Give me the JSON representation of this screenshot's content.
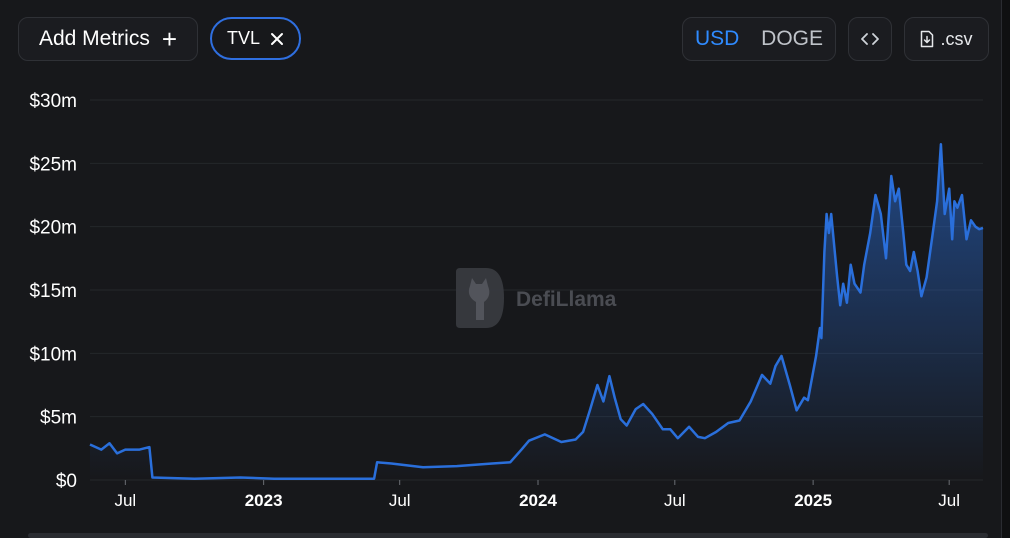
{
  "toolbar": {
    "add_metrics_label": "Add Metrics",
    "metric_chip_label": "TVL",
    "currency_options": [
      "USD",
      "DOGE"
    ],
    "selected_currency": "USD",
    "csv_label": ".csv"
  },
  "icons": {
    "add": "plus-icon",
    "remove": "close-icon",
    "embed": "code-icon",
    "download": "file-download-icon"
  },
  "watermark": "DefiLlama",
  "colors": {
    "line": "#2a6fdb",
    "active_currency": "#2f8bff",
    "background": "#17181b"
  },
  "chart_data": {
    "type": "area",
    "y_ticks": [
      "$0",
      "$5m",
      "$10m",
      "$15m",
      "$20m",
      "$25m",
      "$30m"
    ],
    "ylim": [
      0,
      30
    ],
    "x_ticks": [
      {
        "label": "Jul",
        "date": "2022-07-01",
        "bold": false
      },
      {
        "label": "2023",
        "date": "2023-01-01",
        "bold": true
      },
      {
        "label": "Jul",
        "date": "2023-07-01",
        "bold": false
      },
      {
        "label": "2024",
        "date": "2024-01-01",
        "bold": true
      },
      {
        "label": "Jul",
        "date": "2024-07-01",
        "bold": false
      },
      {
        "label": "2025",
        "date": "2025-01-01",
        "bold": true
      },
      {
        "label": "Jul",
        "date": "2025-07-01",
        "bold": false
      }
    ],
    "xlim": [
      "2022-05-15",
      "2025-08-15"
    ],
    "grid": "horizontal",
    "series": [
      {
        "x": [
          "2022-05-15",
          "2022-05-30",
          "2022-06-10",
          "2022-06-20",
          "2022-07-01",
          "2022-07-20",
          "2022-08-02",
          "2022-08-06",
          "2022-10-01",
          "2022-12-01",
          "2023-01-15",
          "2023-04-01",
          "2023-05-28",
          "2023-06-01",
          "2023-06-20",
          "2023-08-01",
          "2023-09-15",
          "2023-11-01",
          "2023-11-25",
          "2023-12-10",
          "2023-12-20",
          "2024-01-10",
          "2024-02-01",
          "2024-02-20",
          "2024-03-01",
          "2024-03-10",
          "2024-03-20",
          "2024-03-28",
          "2024-04-05",
          "2024-04-12",
          "2024-04-20",
          "2024-04-28",
          "2024-05-10",
          "2024-05-20",
          "2024-06-01",
          "2024-06-15",
          "2024-06-25",
          "2024-07-05",
          "2024-07-20",
          "2024-08-01",
          "2024-08-10",
          "2024-08-25",
          "2024-09-10",
          "2024-09-25",
          "2024-10-10",
          "2024-10-25",
          "2024-11-05",
          "2024-11-12",
          "2024-11-20",
          "2024-12-01",
          "2024-12-10",
          "2024-12-20",
          "2024-12-25",
          "2025-01-05",
          "2025-01-10",
          "2025-01-12",
          "2025-01-16",
          "2025-01-19",
          "2025-01-22",
          "2025-01-25",
          "2025-01-29",
          "2025-02-02",
          "2025-02-06",
          "2025-02-10",
          "2025-02-15",
          "2025-02-20",
          "2025-02-25",
          "2025-03-05",
          "2025-03-10",
          "2025-03-18",
          "2025-03-25",
          "2025-04-01",
          "2025-04-08",
          "2025-04-15",
          "2025-04-20",
          "2025-04-25",
          "2025-05-01",
          "2025-05-05",
          "2025-05-10",
          "2025-05-15",
          "2025-05-20",
          "2025-05-25",
          "2025-06-01",
          "2025-06-08",
          "2025-06-15",
          "2025-06-20",
          "2025-06-25",
          "2025-07-01",
          "2025-07-05",
          "2025-07-08",
          "2025-07-12",
          "2025-07-18",
          "2025-07-24",
          "2025-07-30",
          "2025-08-05",
          "2025-08-10",
          "2025-08-15"
        ],
        "y": [
          2.8,
          2.4,
          2.9,
          2.1,
          2.4,
          2.4,
          2.6,
          0.2,
          0.1,
          0.2,
          0.1,
          0.1,
          0.1,
          1.4,
          1.3,
          1.0,
          1.1,
          1.3,
          1.4,
          2.4,
          3.1,
          3.6,
          3.0,
          3.2,
          3.8,
          5.5,
          7.5,
          6.2,
          8.2,
          6.5,
          4.8,
          4.3,
          5.6,
          6.0,
          5.2,
          4.0,
          4.0,
          3.3,
          4.2,
          3.4,
          3.3,
          3.8,
          4.5,
          4.7,
          6.2,
          8.3,
          7.6,
          9.0,
          9.8,
          7.5,
          5.5,
          6.5,
          6.3,
          9.8,
          12.0,
          11.2,
          18.0,
          21.0,
          19.5,
          21.0,
          18.5,
          16.0,
          13.8,
          15.5,
          14.0,
          17.0,
          15.5,
          14.8,
          17.0,
          19.5,
          22.5,
          21.0,
          17.5,
          24.0,
          22.0,
          23.0,
          19.5,
          17.0,
          16.5,
          18.0,
          16.5,
          14.5,
          16.0,
          19.0,
          22.0,
          26.5,
          21.0,
          23.0,
          19.0,
          22.0,
          21.5,
          22.5,
          19.0,
          20.5,
          20.0,
          19.8,
          19.9
        ]
      }
    ]
  }
}
